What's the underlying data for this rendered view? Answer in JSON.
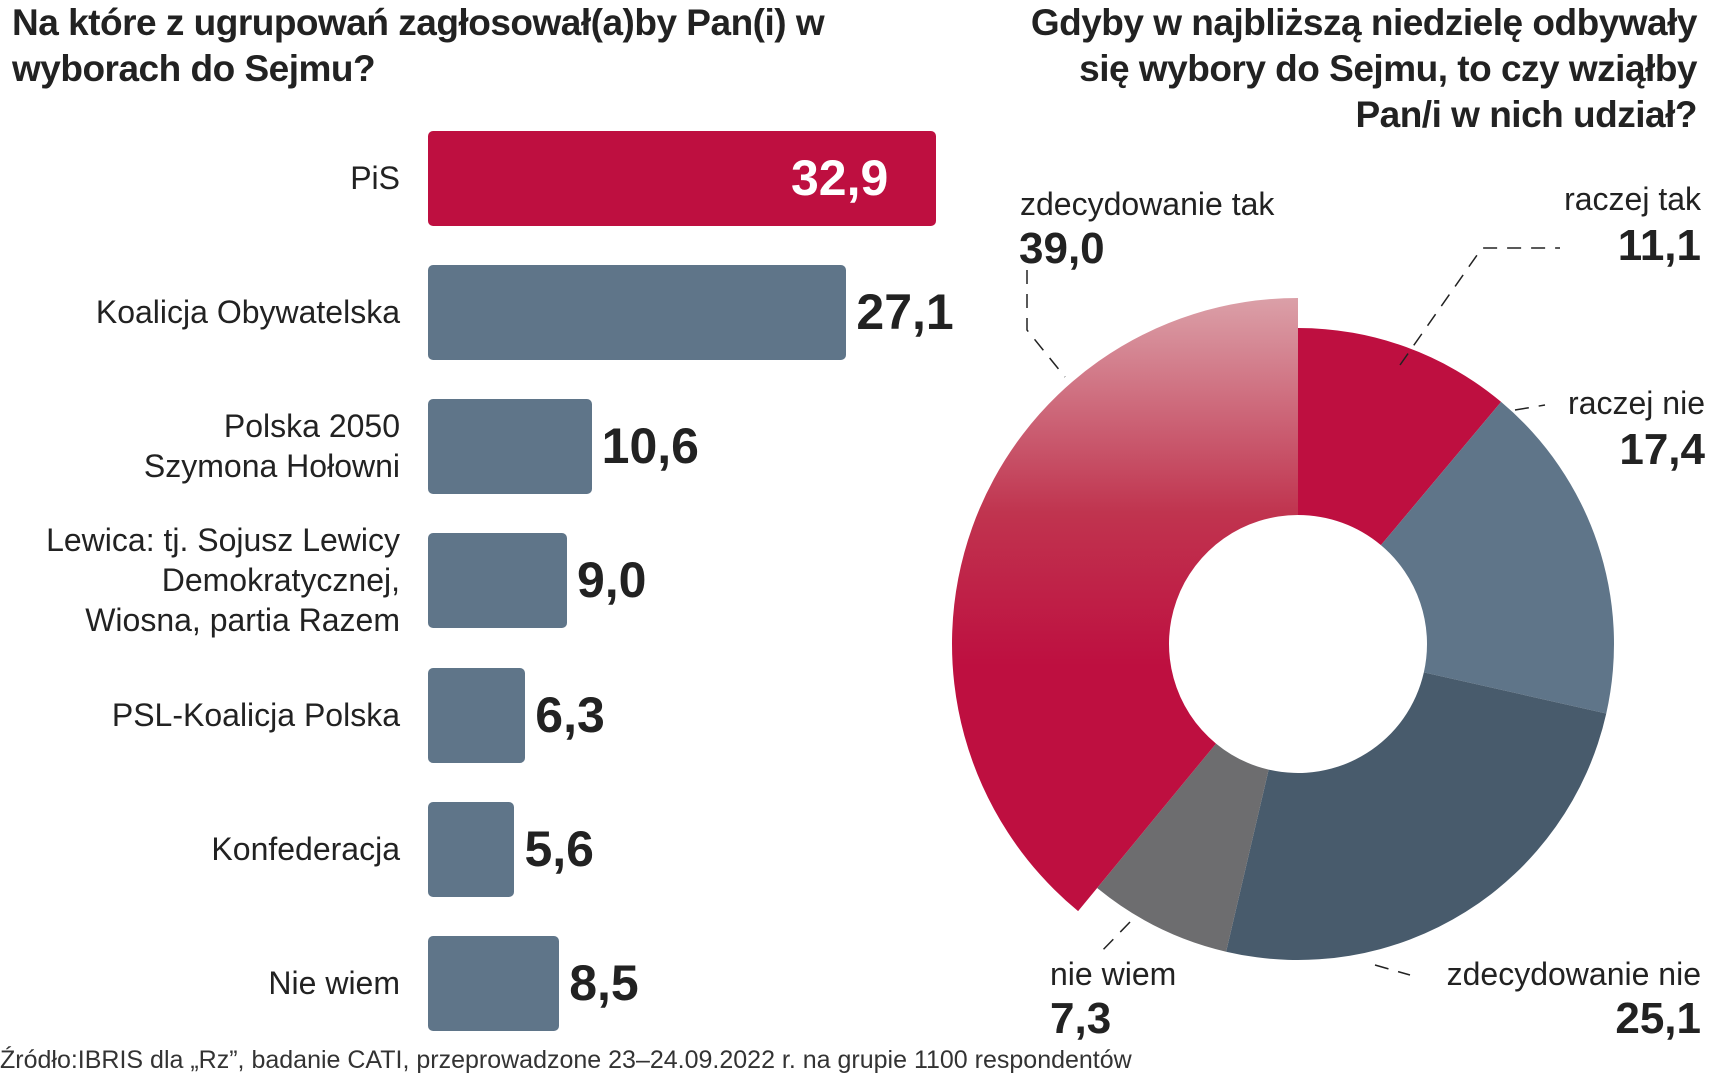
{
  "chart_data": [
    {
      "type": "bar",
      "orientation": "horizontal",
      "title": "Na które z ugrupowań zagłosował(a)by Pan(i) w wyborach do Sejmu?",
      "categories": [
        "PiS",
        "Koalicja Obywatelska",
        "Polska 2050\nSzymona Hołowni",
        "Lewica: tj. Sojusz Lewicy\nDemokratycznej,\nWiosna, partia Razem",
        "PSL-Koalicja Polska",
        "Konfederacja",
        "Nie wiem"
      ],
      "values": [
        32.9,
        27.1,
        10.6,
        9.0,
        6.3,
        5.6,
        8.5
      ],
      "value_labels": [
        "32,9",
        "27,1",
        "10,6",
        "9,0",
        "6,3",
        "5,6",
        "8,5"
      ],
      "colors": [
        "#be0f40",
        "#5f7589",
        "#5f7589",
        "#5f7589",
        "#5f7589",
        "#5f7589",
        "#5f7589"
      ]
    },
    {
      "type": "pie",
      "donut": true,
      "title": "Gdyby w najbliższą niedzielę odbywały się wybory do Sejmu, to czy wziąłby Pan/i w nich udział?",
      "slices": [
        {
          "label": "raczej tak",
          "value": 11.1,
          "value_label": "11,1",
          "color": "#be0f40"
        },
        {
          "label": "raczej nie",
          "value": 17.4,
          "value_label": "17,4",
          "color": "#5f7589"
        },
        {
          "label": "zdecydowanie nie",
          "value": 25.1,
          "value_label": "25,1",
          "color": "#485b6c"
        },
        {
          "label": "nie wiem",
          "value": 7.3,
          "value_label": "7,3",
          "color": "#6d6d6f"
        },
        {
          "label": "zdecydowanie tak",
          "value": 39.0,
          "value_label": "39,0",
          "color": "#be0f40",
          "exploded": true
        }
      ]
    }
  ],
  "source": "Źródło:IBRIS dla „Rz”, badanie CATI, przeprowadzone 23–24.09.2022 r. na grupie 1100 respondentów"
}
